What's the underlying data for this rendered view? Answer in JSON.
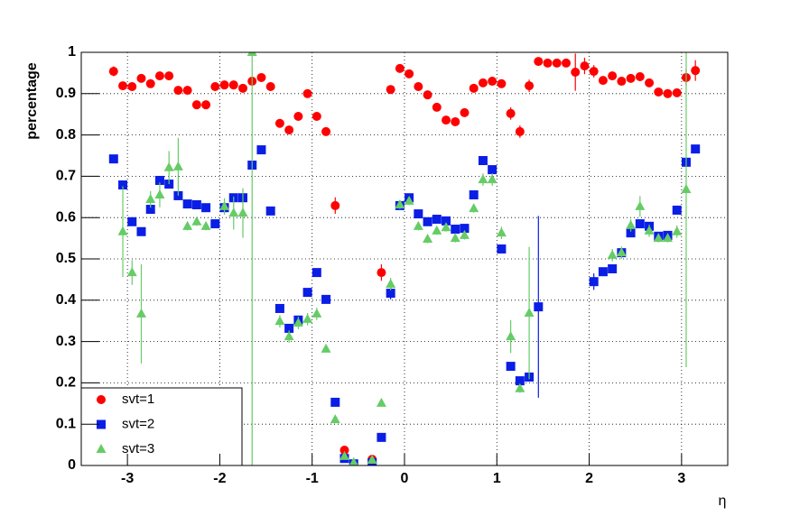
{
  "chart_data": {
    "type": "scatter",
    "ylabel": "percentage",
    "xlabel": "η",
    "xlim": [
      -3.5,
      3.5
    ],
    "ylim": [
      0,
      1
    ],
    "xticks": [
      -3,
      -2,
      -1,
      0,
      1,
      2,
      3
    ],
    "yticks": [
      0,
      0.1,
      0.2,
      0.3,
      0.4,
      0.5,
      0.6,
      0.7,
      0.8,
      0.9,
      1
    ],
    "grid": true,
    "legend_position": "bottom-left",
    "series": [
      {
        "name": "svt=1",
        "color": "#ff0000",
        "marker": "circle",
        "x": [
          -3.15,
          -3.05,
          -2.95,
          -2.85,
          -2.75,
          -2.65,
          -2.55,
          -2.45,
          -2.35,
          -2.25,
          -2.15,
          -2.05,
          -1.95,
          -1.85,
          -1.75,
          -1.65,
          -1.55,
          -1.45,
          -1.35,
          -1.25,
          -1.15,
          -1.05,
          -0.95,
          -0.85,
          -0.75,
          -0.65,
          -0.35,
          -0.25,
          -0.15,
          -0.05,
          0.05,
          0.15,
          0.25,
          0.35,
          0.45,
          0.55,
          0.65,
          0.75,
          0.85,
          0.95,
          1.05,
          1.15,
          1.25,
          1.35,
          1.45,
          1.55,
          1.65,
          1.75,
          1.85,
          1.95,
          2.05,
          2.15,
          2.25,
          2.35,
          2.45,
          2.55,
          2.65,
          2.75,
          2.85,
          2.95,
          3.05,
          3.15
        ],
        "values": [
          0.954,
          0.919,
          0.917,
          0.937,
          0.924,
          0.943,
          0.943,
          0.908,
          0.908,
          0.873,
          0.873,
          0.917,
          0.921,
          0.921,
          0.913,
          0.93,
          0.939,
          0.917,
          0.828,
          0.812,
          0.845,
          0.9,
          0.845,
          0.808,
          0.629,
          0.037,
          0.015,
          0.467,
          0.91,
          0.961,
          0.948,
          0.917,
          0.897,
          0.867,
          0.836,
          0.832,
          0.854,
          0.913,
          0.926,
          0.93,
          0.924,
          0.852,
          0.808,
          0.919,
          0.978,
          0.974,
          0.974,
          0.974,
          0.952,
          0.967,
          0.954,
          0.932,
          0.943,
          0.93,
          0.937,
          0.941,
          0.926,
          0.904,
          0.9,
          0.902,
          0.939,
          0.956
        ],
        "errors": [
          0.012,
          0.01,
          0.01,
          0.01,
          0.01,
          0.01,
          0.01,
          0.01,
          0.01,
          0.01,
          0.01,
          0.01,
          0.01,
          0.01,
          0.01,
          0.01,
          0.01,
          0.01,
          0.01,
          0.01,
          0.01,
          0.01,
          0.01,
          0.01,
          0.02,
          0.01,
          0.005,
          0.02,
          0.01,
          0.01,
          0.01,
          0.01,
          0.01,
          0.01,
          0.01,
          0.01,
          0.01,
          0.01,
          0.01,
          0.01,
          0.01,
          0.015,
          0.015,
          0.015,
          0.01,
          0.01,
          0.01,
          0.01,
          0.045,
          0.02,
          0.015,
          0.01,
          0.01,
          0.01,
          0.01,
          0.01,
          0.01,
          0.01,
          0.01,
          0.01,
          0.02,
          0.025
        ]
      },
      {
        "name": "svt=2",
        "color": "#0a1ee6",
        "marker": "square",
        "x": [
          -3.15,
          -3.05,
          -2.95,
          -2.85,
          -2.75,
          -2.65,
          -2.55,
          -2.45,
          -2.35,
          -2.25,
          -2.15,
          -2.05,
          -1.95,
          -1.85,
          -1.75,
          -1.65,
          -1.55,
          -1.45,
          -1.35,
          -1.25,
          -1.15,
          -1.05,
          -0.95,
          -0.85,
          -0.75,
          -0.65,
          -0.55,
          -0.35,
          -0.25,
          -0.15,
          -0.05,
          0.05,
          0.15,
          0.25,
          0.35,
          0.45,
          0.55,
          0.65,
          0.75,
          0.85,
          0.95,
          1.05,
          1.15,
          1.25,
          1.35,
          1.45,
          2.05,
          2.15,
          2.25,
          2.35,
          2.45,
          2.55,
          2.65,
          2.75,
          2.85,
          2.95,
          3.05,
          3.15
        ],
        "values": [
          0.742,
          0.679,
          0.59,
          0.566,
          0.62,
          0.69,
          0.681,
          0.653,
          0.633,
          0.631,
          0.624,
          0.585,
          0.624,
          0.648,
          0.648,
          0.727,
          0.764,
          0.616,
          0.38,
          0.332,
          0.352,
          0.419,
          0.467,
          0.402,
          0.153,
          0.017,
          0.004,
          0.007,
          0.068,
          0.417,
          0.629,
          0.648,
          0.609,
          0.59,
          0.596,
          0.592,
          0.572,
          0.574,
          0.655,
          0.738,
          0.716,
          0.524,
          0.24,
          0.205,
          0.214,
          0.384,
          0.445,
          0.469,
          0.476,
          0.515,
          0.563,
          0.585,
          0.579,
          0.555,
          0.557,
          0.618,
          0.734,
          0.766
        ],
        "errors": [
          0.01,
          0.01,
          0.01,
          0.01,
          0.01,
          0.01,
          0.01,
          0.01,
          0.01,
          0.01,
          0.01,
          0.01,
          0.01,
          0.01,
          0.01,
          0.01,
          0.01,
          0.01,
          0.01,
          0.01,
          0.01,
          0.01,
          0.01,
          0.01,
          0.01,
          0.01,
          0.01,
          0.01,
          0.01,
          0.015,
          0.01,
          0.01,
          0.01,
          0.01,
          0.01,
          0.01,
          0.01,
          0.01,
          0.01,
          0.01,
          0.01,
          0.01,
          0.01,
          0.01,
          0.01,
          0.22,
          0.02,
          0.01,
          0.01,
          0.01,
          0.01,
          0.01,
          0.01,
          0.01,
          0.01,
          0.01,
          0.01,
          0.01
        ]
      },
      {
        "name": "svt=3",
        "color": "#66cc66",
        "marker": "triangle",
        "x": [
          -3.05,
          -2.95,
          -2.85,
          -2.75,
          -2.65,
          -2.55,
          -2.45,
          -2.35,
          -2.25,
          -2.15,
          -1.95,
          -1.85,
          -1.75,
          -1.65,
          -1.35,
          -1.25,
          -1.15,
          -1.05,
          -0.95,
          -0.85,
          -0.75,
          -0.65,
          -0.55,
          -0.35,
          -0.25,
          -0.15,
          -0.05,
          0.05,
          0.15,
          0.25,
          0.35,
          0.45,
          0.55,
          0.65,
          0.75,
          0.85,
          0.95,
          1.05,
          1.15,
          1.25,
          1.35,
          2.25,
          2.35,
          2.45,
          2.55,
          2.65,
          2.75,
          2.85,
          2.95,
          3.05
        ],
        "values": [
          0.566,
          0.467,
          0.367,
          0.644,
          0.655,
          0.721,
          0.723,
          0.579,
          0.59,
          0.579,
          0.627,
          0.611,
          0.611,
          1.0,
          0.349,
          0.312,
          0.345,
          0.354,
          0.367,
          0.282,
          0.111,
          0.022,
          0.007,
          0.013,
          0.151,
          0.439,
          0.631,
          0.64,
          0.579,
          0.548,
          0.568,
          0.576,
          0.55,
          0.557,
          0.622,
          0.692,
          0.692,
          0.563,
          0.312,
          0.186,
          0.369,
          0.509,
          0.515,
          0.581,
          0.627,
          0.568,
          0.55,
          0.55,
          0.566,
          0.668
        ],
        "errors": [
          0.11,
          0.03,
          0.12,
          0.02,
          0.03,
          0.04,
          0.07,
          0.01,
          0.01,
          0.01,
          0.02,
          0.04,
          0.06,
          1.0,
          0.015,
          0.015,
          0.015,
          0.015,
          0.015,
          0.005,
          0.005,
          0.005,
          0.005,
          0.005,
          0.005,
          0.015,
          0.01,
          0.01,
          0.01,
          0.01,
          0.01,
          0.01,
          0.01,
          0.01,
          0.01,
          0.015,
          0.015,
          0.015,
          0.04,
          0.01,
          0.16,
          0.015,
          0.015,
          0.015,
          0.025,
          0.015,
          0.01,
          0.01,
          0.015,
          0.43
        ]
      }
    ]
  }
}
